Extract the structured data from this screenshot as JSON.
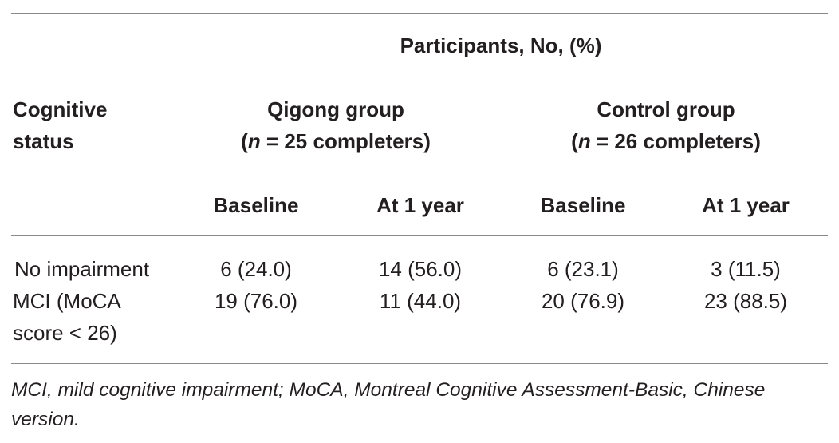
{
  "table": {
    "header": {
      "participants": "Participants, No, (%)",
      "cognitive_status_line1": "Cognitive",
      "cognitive_status_line2": "status",
      "qigong_title": "Qigong group",
      "qigong_n_open": "(",
      "qigong_n_var": "n",
      "qigong_n_rest": " = 25 completers)",
      "control_title": "Control group",
      "control_n_open": "(",
      "control_n_var": "n",
      "control_n_rest": " = 26 completers)",
      "baseline_1": "Baseline",
      "year_1": "At 1 year",
      "baseline_2": "Baseline",
      "year_2": "At 1 year"
    },
    "rows": [
      {
        "label_lines": [
          "No impairment"
        ],
        "qigong_baseline": "6 (24.0)",
        "qigong_year": "14 (56.0)",
        "control_baseline": "6 (23.1)",
        "control_year": "3 (11.5)"
      },
      {
        "label_lines": [
          "MCI (MoCA",
          "score < 26)"
        ],
        "qigong_baseline": "19 (76.0)",
        "qigong_year": "11 (44.0)",
        "control_baseline": "20 (76.9)",
        "control_year": "23 (88.5)"
      }
    ]
  },
  "footnote": {
    "line1": "MCI, mild cognitive impairment; MoCA, Montreal Cognitive Assessment-Basic, Chinese",
    "line2": "version."
  }
}
